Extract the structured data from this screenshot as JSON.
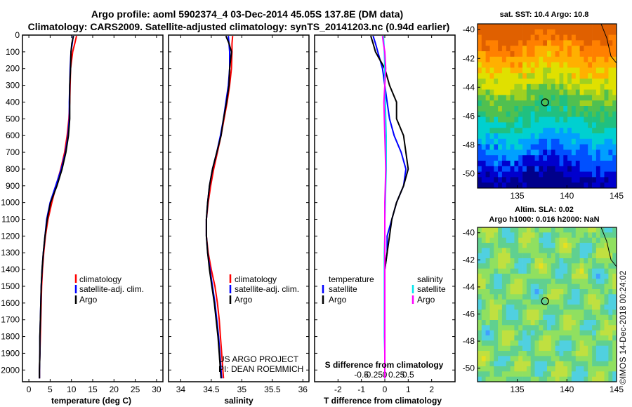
{
  "header": {
    "title_line1": "Argo profile: aoml 5902374_4 03-Dec-2014 45.05S 137.8E (DM data)",
    "title_line2": "Climatology: CARS2009. Satellite-adjusted climatology: synTS_20141203.nc (0.94d earlier)"
  },
  "credit": {
    "project": "US ARGO PROJECT",
    "pi": "PI: DEAN ROEMMICH",
    "side": "©IMOS 14-Dec-2018 00:24:02"
  },
  "legend": {
    "climatology": "climatology",
    "satellite": "satellite-adj. clim.",
    "argo": "Argo",
    "temperature": "temperature",
    "salinity": "salinity",
    "satellite_short": "satellite"
  },
  "colors": {
    "climatology": "#ff0000",
    "satellite": "#0000ff",
    "argo": "#000000",
    "sal_satellite": "#00e5ee",
    "sal_argo": "#ff00ff"
  },
  "chart_data": [
    {
      "id": "temperature",
      "type": "line",
      "xlabel": "temperature (deg C)",
      "xlim": [
        -1.5,
        31.5
      ],
      "xticks": [
        "0",
        "5",
        "10",
        "15",
        "20",
        "25",
        "30"
      ],
      "ylim": [
        2070,
        0
      ],
      "yticks": [
        "0",
        "100",
        "200",
        "300",
        "400",
        "500",
        "600",
        "700",
        "800",
        "900",
        "1000",
        "1100",
        "1200",
        "1300",
        "1400",
        "1500",
        "1600",
        "1700",
        "1800",
        "1900",
        "2000"
      ],
      "depth": [
        5,
        50,
        100,
        200,
        300,
        400,
        500,
        600,
        700,
        800,
        900,
        1000,
        1100,
        1200,
        1300,
        1400,
        1500,
        1600,
        1700,
        1800,
        1900,
        2000,
        2050
      ],
      "series": [
        {
          "name": "climatology",
          "values": [
            11.2,
            10.8,
            10.3,
            9.8,
            9.7,
            9.6,
            9.4,
            9.0,
            8.4,
            7.5,
            6.4,
            5.4,
            4.5,
            3.9,
            3.5,
            3.2,
            3.0,
            2.9,
            2.8,
            2.7,
            2.6,
            2.5,
            2.5
          ]
        },
        {
          "name": "satellite-adj. clim.",
          "values": [
            10.4,
            10.2,
            9.9,
            9.7,
            9.6,
            9.5,
            9.5,
            9.2,
            8.6,
            7.6,
            6.3,
            5.0,
            4.2,
            3.8,
            3.4,
            3.1,
            2.9,
            2.8,
            2.7,
            2.6,
            2.6,
            2.5,
            2.5
          ]
        },
        {
          "name": "Argo",
          "values": [
            10.5,
            10.1,
            9.9,
            9.8,
            9.6,
            9.6,
            9.6,
            9.3,
            8.7,
            7.8,
            6.6,
            5.1,
            4.3,
            3.8,
            3.4,
            3.1,
            2.9,
            2.8,
            2.7,
            2.6,
            2.6,
            2.5,
            2.5
          ]
        }
      ]
    },
    {
      "id": "salinity",
      "type": "line",
      "xlabel": "salinity",
      "xlim": [
        33.8,
        36.1
      ],
      "xticks": [
        "34",
        "34.5",
        "35",
        "35.5",
        "36"
      ],
      "ylim": [
        2070,
        0
      ],
      "depth": [
        5,
        50,
        100,
        200,
        300,
        400,
        500,
        600,
        700,
        800,
        900,
        1000,
        1100,
        1200,
        1300,
        1400,
        1500,
        1600,
        1700,
        1800,
        1900,
        2000,
        2050
      ],
      "series": [
        {
          "name": "climatology",
          "values": [
            34.85,
            34.84,
            34.84,
            34.83,
            34.8,
            34.76,
            34.71,
            34.66,
            34.6,
            34.54,
            34.49,
            34.45,
            34.42,
            34.42,
            34.45,
            34.5,
            34.56,
            34.6,
            34.63,
            34.65,
            34.67,
            34.69,
            34.7
          ]
        },
        {
          "name": "satellite-adj. clim.",
          "values": [
            34.78,
            34.79,
            34.8,
            34.8,
            34.78,
            34.74,
            34.7,
            34.65,
            34.59,
            34.52,
            34.47,
            34.44,
            34.42,
            34.42,
            34.44,
            34.48,
            34.52,
            34.56,
            34.59,
            34.62,
            34.64,
            34.66,
            34.67
          ]
        },
        {
          "name": "Argo",
          "values": [
            34.74,
            34.79,
            34.83,
            34.8,
            34.79,
            34.75,
            34.7,
            34.66,
            34.59,
            34.52,
            34.47,
            34.44,
            34.42,
            34.42,
            34.44,
            34.47,
            34.51,
            34.55,
            34.58,
            34.61,
            34.63,
            34.65,
            34.66
          ]
        }
      ]
    },
    {
      "id": "difference",
      "type": "line",
      "xlabel": "T difference from climatology",
      "xlabel_top": "S difference from climatology",
      "xlim": [
        -3,
        3
      ],
      "xticks": [
        "-2",
        "-1",
        "0",
        "1",
        "2"
      ],
      "xticks_top": [
        "-0.5",
        "-0.25",
        "0",
        "0.25",
        "0.5"
      ],
      "ylim": [
        2070,
        0
      ],
      "depth": [
        5,
        50,
        100,
        200,
        300,
        400,
        500,
        600,
        700,
        800,
        900,
        1000,
        1100,
        1200,
        1300,
        1400,
        1500,
        1600,
        1700,
        1800,
        1900,
        2000,
        2050
      ],
      "series": [
        {
          "name": "temperature satellite",
          "values": [
            -0.5,
            -0.4,
            -0.3,
            -0.1,
            0.0,
            0.1,
            0.2,
            0.4,
            0.7,
            0.9,
            0.8,
            0.5,
            0.3,
            0.1,
            0.1,
            0.0,
            0.0,
            0.0,
            0.0,
            0.0,
            0.0,
            0.0,
            0.0
          ]
        },
        {
          "name": "temperature Argo",
          "values": [
            -0.6,
            -0.5,
            -0.4,
            0.0,
            0.2,
            0.5,
            0.5,
            0.8,
            0.9,
            1.0,
            0.8,
            0.5,
            0.3,
            0.2,
            0.1,
            0.0,
            0.0,
            0.0,
            0.0,
            0.0,
            0.0,
            0.0,
            0.0
          ]
        },
        {
          "name": "salinity satellite",
          "values": [
            -0.03,
            -0.02,
            -0.01,
            0.0,
            0.0,
            0.01,
            0.02,
            0.03,
            0.03,
            0.03,
            0.02,
            0.01,
            0.0,
            0.0,
            -0.01,
            -0.01,
            -0.01,
            -0.01,
            -0.01,
            -0.01,
            0.0,
            0.0,
            0.0
          ]
        },
        {
          "name": "salinity Argo",
          "values": [
            -0.05,
            -0.03,
            0.0,
            0.02,
            0.0,
            -0.02,
            -0.01,
            0.0,
            0.01,
            0.02,
            0.01,
            0.0,
            0.0,
            0.0,
            0.0,
            0.0,
            0.0,
            0.0,
            0.0,
            0.0,
            0.0,
            0.0,
            0.0
          ]
        }
      ]
    },
    {
      "id": "sst_map",
      "type": "heatmap",
      "title": "sat. SST: 10.4 Argo: 10.8",
      "xticks": [
        "135",
        "140",
        "145"
      ],
      "yticks": [
        "-40",
        "-42",
        "-44",
        "-46",
        "-48",
        "-50"
      ],
      "xlim": [
        131,
        145
      ],
      "ylim": [
        -51,
        -39.6
      ],
      "marker": {
        "lon": 137.8,
        "lat": -45.05
      }
    },
    {
      "id": "sla_map",
      "type": "heatmap",
      "title_line1": "Altim. SLA: 0.02",
      "title_line2": "Argo h1000: 0.016 h2000: NaN",
      "xticks": [
        "135",
        "140",
        "145"
      ],
      "yticks": [
        "-40",
        "-42",
        "-44",
        "-46",
        "-48",
        "-50"
      ],
      "xlim": [
        131,
        145
      ],
      "ylim": [
        -51,
        -39.6
      ],
      "marker": {
        "lon": 137.8,
        "lat": -45.05
      }
    }
  ]
}
